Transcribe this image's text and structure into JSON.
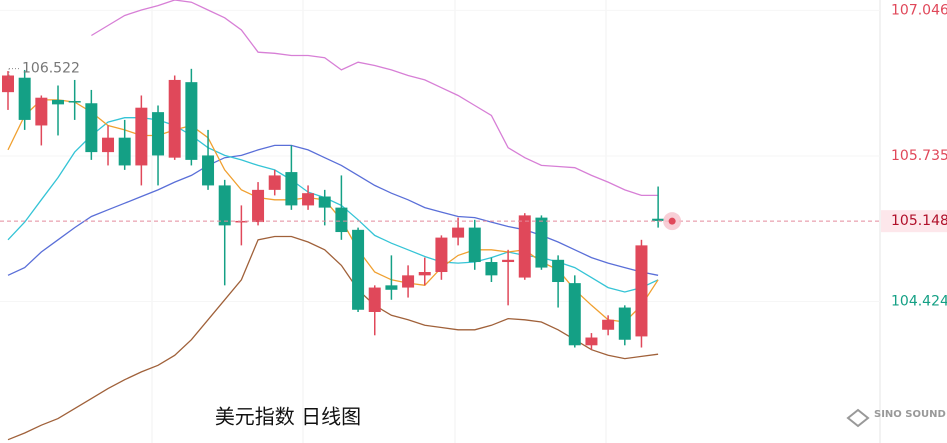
{
  "chart_data": {
    "type": "candlestick",
    "title": "美元指数  日线图",
    "watermark": "SINO SOUND",
    "max_label": 106.522,
    "last_price": 105.148,
    "ylim": [
      103.15,
      107.14
    ],
    "yticks": [
      104.424,
      105.735,
      107.046
    ],
    "up_color": "#e0485a",
    "down_color": "#14a085",
    "open": [
      106.31,
      106.44,
      106.01,
      106.24,
      106.23,
      106.21,
      105.77,
      105.9,
      105.65,
      106.13,
      105.72,
      106.4,
      105.74,
      105.47,
      105.14,
      105.14,
      105.43,
      105.59,
      105.29,
      105.37,
      105.27,
      105.07,
      104.33,
      104.57,
      104.55,
      104.66,
      104.69,
      105.0,
      105.09,
      104.78,
      104.78,
      104.64,
      105.18,
      104.8,
      104.59,
      104.03,
      104.17,
      104.37,
      104.11,
      105.17
    ],
    "high": [
      106.5,
      106.51,
      106.28,
      106.37,
      106.42,
      106.33,
      106.01,
      106.06,
      106.28,
      106.19,
      106.46,
      106.52,
      105.97,
      105.52,
      105.29,
      105.5,
      105.61,
      105.83,
      105.47,
      105.43,
      105.56,
      105.09,
      104.57,
      104.84,
      104.75,
      104.82,
      105.02,
      105.18,
      105.16,
      104.82,
      104.89,
      105.22,
      105.2,
      104.84,
      104.66,
      104.14,
      104.3,
      104.39,
      104.98,
      105.46
    ],
    "low": [
      106.15,
      105.97,
      105.83,
      105.92,
      106.06,
      105.7,
      105.65,
      105.61,
      105.47,
      105.47,
      105.7,
      105.65,
      105.43,
      104.57,
      104.93,
      105.11,
      105.38,
      105.25,
      105.25,
      105.11,
      104.98,
      104.33,
      104.12,
      104.44,
      104.46,
      104.57,
      104.62,
      104.93,
      104.71,
      104.6,
      104.39,
      104.62,
      104.71,
      104.37,
      104.01,
      103.99,
      104.12,
      104.03,
      104.01,
      105.09
    ],
    "close": [
      106.46,
      106.06,
      106.26,
      106.2,
      106.22,
      105.77,
      105.9,
      105.65,
      106.17,
      105.74,
      106.42,
      105.7,
      105.47,
      105.11,
      105.15,
      105.43,
      105.56,
      105.29,
      105.4,
      105.27,
      105.05,
      104.35,
      104.55,
      104.53,
      104.66,
      104.69,
      105.0,
      105.09,
      104.78,
      104.66,
      104.8,
      105.2,
      104.73,
      104.6,
      104.03,
      104.1,
      104.26,
      104.08,
      104.93,
      105.15
    ],
    "series": [
      {
        "color": "#d77fd6",
        "values": [
          null,
          null,
          null,
          null,
          null,
          106.82,
          106.91,
          107.0,
          107.05,
          107.09,
          107.14,
          107.12,
          107.05,
          106.98,
          106.87,
          106.67,
          106.66,
          106.64,
          106.64,
          106.62,
          106.51,
          106.58,
          106.55,
          106.51,
          106.46,
          106.42,
          106.35,
          106.28,
          106.19,
          106.1,
          105.81,
          105.72,
          105.65,
          105.64,
          105.63,
          105.56,
          105.5,
          105.43,
          105.38,
          105.38
        ]
      },
      {
        "color": "#a0613a",
        "values": [
          103.18,
          103.24,
          103.31,
          103.37,
          103.46,
          103.55,
          103.64,
          103.72,
          103.79,
          103.85,
          103.94,
          104.08,
          104.26,
          104.44,
          104.62,
          104.98,
          105.01,
          105.01,
          104.96,
          104.89,
          104.75,
          104.53,
          104.39,
          104.3,
          104.26,
          104.21,
          104.19,
          104.17,
          104.17,
          104.21,
          104.27,
          104.26,
          104.24,
          104.17,
          104.08,
          103.99,
          103.94,
          103.91,
          103.93,
          103.95
        ]
      },
      {
        "color": "#5a6fd8",
        "values": [
          104.66,
          104.73,
          104.87,
          104.98,
          105.09,
          105.19,
          105.25,
          105.31,
          105.37,
          105.43,
          105.5,
          105.56,
          105.65,
          105.72,
          105.74,
          105.79,
          105.83,
          105.83,
          105.79,
          105.72,
          105.65,
          105.56,
          105.47,
          105.4,
          105.34,
          105.27,
          105.23,
          105.19,
          105.18,
          105.14,
          105.1,
          105.07,
          105.02,
          104.96,
          104.89,
          104.82,
          104.77,
          104.73,
          104.69,
          104.66
        ]
      },
      {
        "color": "#35c4d6",
        "values": [
          104.98,
          105.14,
          105.34,
          105.54,
          105.77,
          105.92,
          106.04,
          106.08,
          106.08,
          106.06,
          106.01,
          105.92,
          105.81,
          105.74,
          105.7,
          105.65,
          105.61,
          105.52,
          105.41,
          105.36,
          105.29,
          105.16,
          105.02,
          104.95,
          104.89,
          104.83,
          104.78,
          104.77,
          104.78,
          104.82,
          104.87,
          104.84,
          104.82,
          104.78,
          104.73,
          104.64,
          104.55,
          104.51,
          104.55,
          104.62
        ]
      },
      {
        "color": "#f0a030",
        "values": [
          105.79,
          106.1,
          106.24,
          106.24,
          106.22,
          106.13,
          106.01,
          105.97,
          105.92,
          105.92,
          105.97,
          106.01,
          105.9,
          105.61,
          105.43,
          105.36,
          105.34,
          105.34,
          105.36,
          105.34,
          105.16,
          104.89,
          104.69,
          104.62,
          104.59,
          104.57,
          104.73,
          104.84,
          104.89,
          104.89,
          104.87,
          104.89,
          104.78,
          104.71,
          104.53,
          104.39,
          104.26,
          104.24,
          104.39,
          104.62
        ]
      }
    ]
  }
}
